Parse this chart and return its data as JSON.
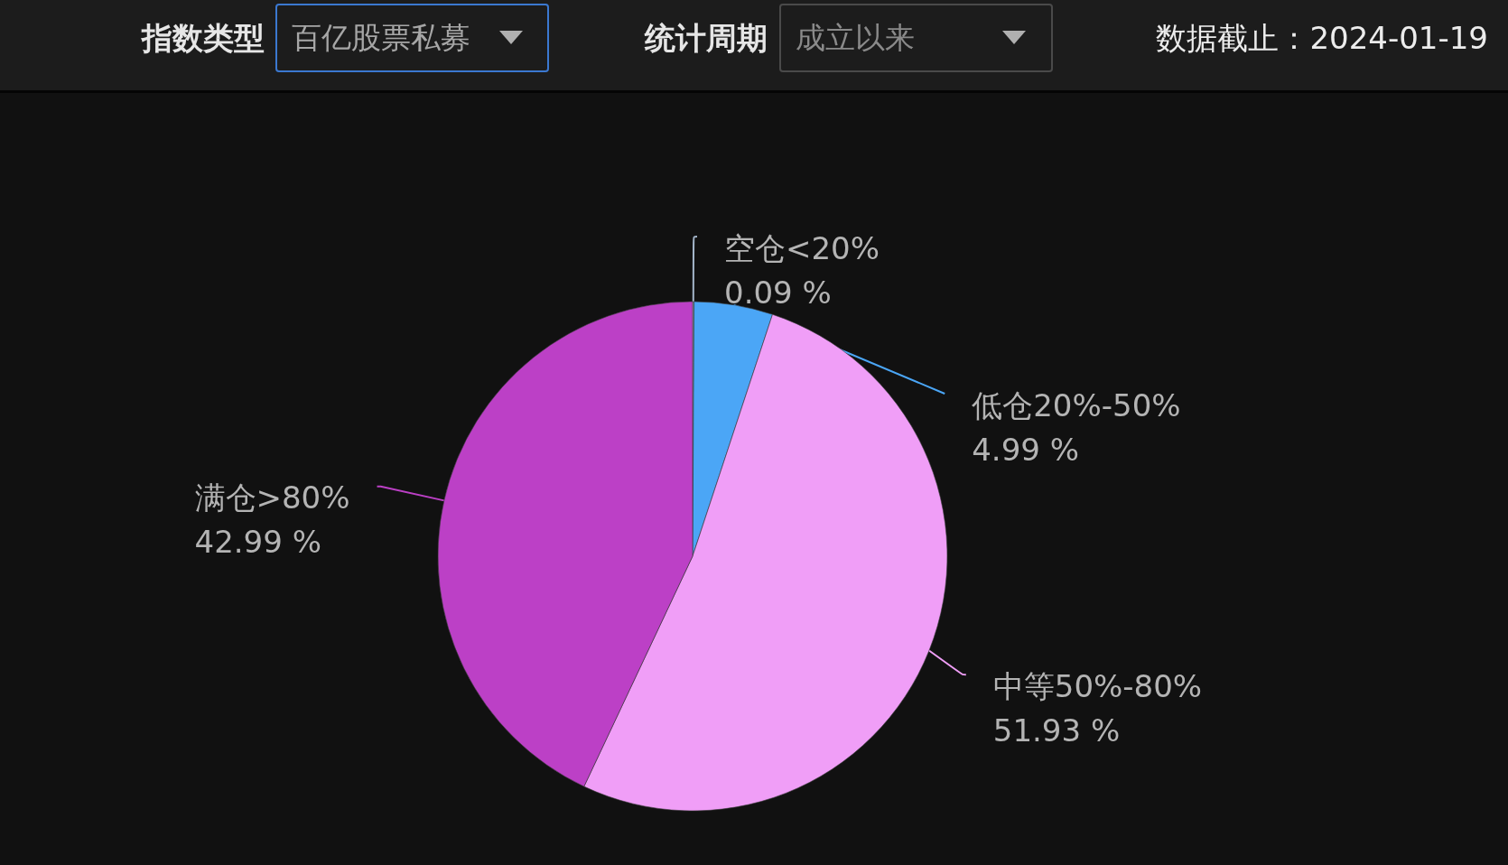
{
  "chart_data": {
    "type": "pie",
    "categories": [
      "空仓<20%",
      "低仓20%-50%",
      "中等50%-80%",
      "满仓>80%"
    ],
    "values": [
      0.09,
      4.99,
      51.93,
      42.99
    ],
    "value_labels": [
      "0.09 %",
      "4.99 %",
      "51.93 %",
      "42.99 %"
    ],
    "colors": [
      "#a3b5c9",
      "#4ba6f6",
      "#f09ef7",
      "#bc40c6"
    ],
    "annotations": [
      "指数类型",
      "百亿股票私募",
      "统计周期",
      "成立以来",
      "数据截止：2024-01-19"
    ]
  }
}
